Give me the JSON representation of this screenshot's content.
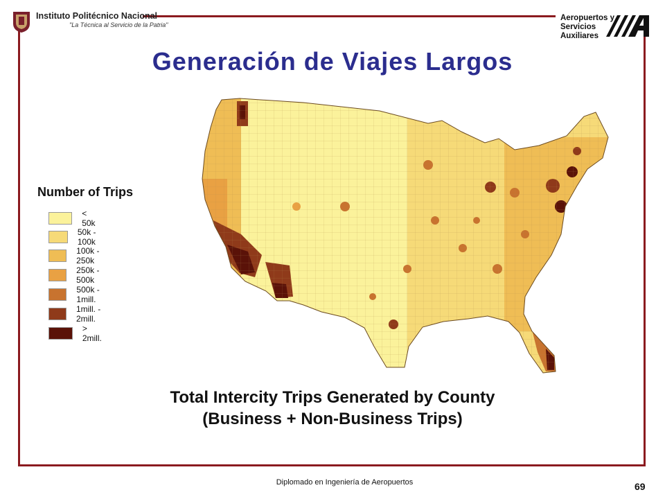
{
  "header": {
    "institution": "Instituto Politécnico Nacional",
    "motto": "\"La Técnica al Servicio de la Patria\"",
    "program_lines": [
      "Aeropuertos y",
      "Servicios",
      "Auxiliares"
    ],
    "program_logo_text": "///A"
  },
  "slide": {
    "title": "Generación de Viajes Largos",
    "caption_line1": "Total Intercity Trips Generated by County",
    "caption_line2": "(Business + Non-Business Trips)"
  },
  "legend": {
    "title": "Number of Trips",
    "items": [
      {
        "label": "< 50k",
        "color": "#fbf29b"
      },
      {
        "label": "50k - 100k",
        "color": "#f6da78"
      },
      {
        "label": "100k - 250k",
        "color": "#efbd55"
      },
      {
        "label": "250k - 500k",
        "color": "#e9a143"
      },
      {
        "label": "500k - 1mill.",
        "color": "#c8732f"
      },
      {
        "label": "1mill. - 2mill.",
        "color": "#8f3a1a"
      },
      {
        "label": "> 2mill.",
        "color": "#5a1208"
      }
    ]
  },
  "footer": {
    "course": "Diplomado en Ingeniería de Aeropuertos",
    "page": "69"
  },
  "colors": {
    "frame": "#8b1a1f",
    "title": "#2b2d8e"
  }
}
